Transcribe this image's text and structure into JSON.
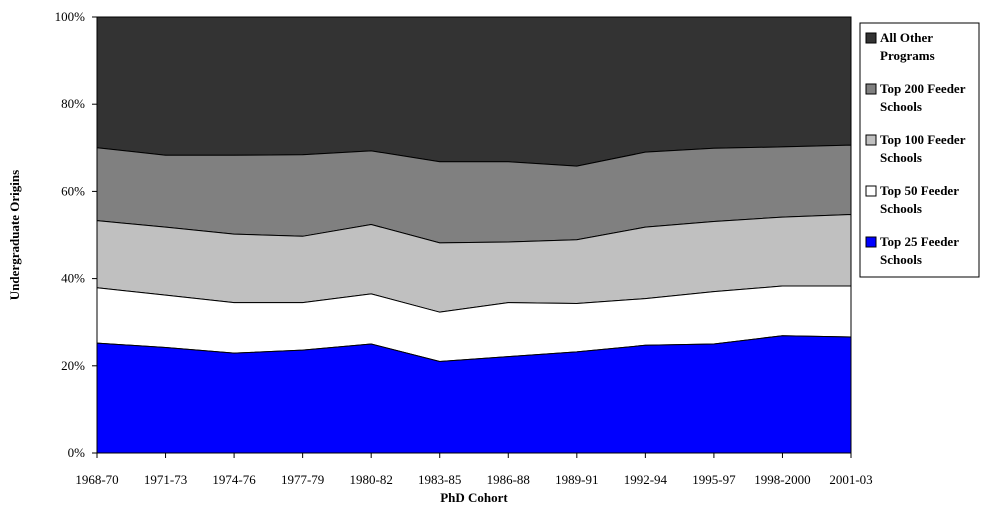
{
  "chart_data": {
    "type": "area",
    "stacked": true,
    "xlabel": "PhD Cohort",
    "ylabel": "Undergraduate Origins",
    "ylim": [
      0,
      100
    ],
    "y_ticks": [
      "0%",
      "20%",
      "40%",
      "60%",
      "80%",
      "100%"
    ],
    "categories": [
      "1968-70",
      "1971-73",
      "1974-76",
      "1977-79",
      "1980-82",
      "1983-85",
      "1986-88",
      "1989-91",
      "1992-94",
      "1995-97",
      "1998-2000",
      "2001-03"
    ],
    "legend_position": "right",
    "series": [
      {
        "name": "Top 25 Feeder Schools",
        "color": "#0000ff",
        "cumulative": [
          25.2,
          24.2,
          22.9,
          23.6,
          25.0,
          21.0,
          22.1,
          23.2,
          24.7,
          25.0,
          26.9,
          26.6
        ]
      },
      {
        "name": "Top 50 Feeder Schools",
        "color": "#ffffff",
        "cumulative": [
          37.9,
          36.2,
          34.5,
          34.5,
          36.5,
          32.3,
          34.5,
          34.3,
          35.4,
          37.0,
          38.3,
          38.3
        ]
      },
      {
        "name": "Top 100 Feeder Schools",
        "color": "#c0c0c0",
        "cumulative": [
          53.3,
          51.8,
          50.2,
          49.7,
          52.4,
          48.2,
          48.4,
          48.9,
          51.8,
          53.1,
          54.1,
          54.7
        ]
      },
      {
        "name": "Top 200 Feeder Schools",
        "color": "#808080",
        "cumulative": [
          70.0,
          68.3,
          68.3,
          68.4,
          69.3,
          66.8,
          66.8,
          65.8,
          69.0,
          69.9,
          70.2,
          70.6
        ]
      },
      {
        "name": "All Other Programs",
        "color": "#333333",
        "cumulative": [
          100,
          100,
          100,
          100,
          100,
          100,
          100,
          100,
          100,
          100,
          100,
          100
        ]
      }
    ],
    "legend_order": [
      {
        "lines": [
          "All Other",
          "Programs"
        ],
        "series": 4
      },
      {
        "lines": [
          "Top 200 Feeder",
          "Schools"
        ],
        "series": 3
      },
      {
        "lines": [
          "Top 100 Feeder",
          "Schools"
        ],
        "series": 2
      },
      {
        "lines": [
          "Top 50 Feeder",
          "Schools"
        ],
        "series": 1
      },
      {
        "lines": [
          "Top 25 Feeder",
          "Schools"
        ],
        "series": 0
      }
    ]
  }
}
